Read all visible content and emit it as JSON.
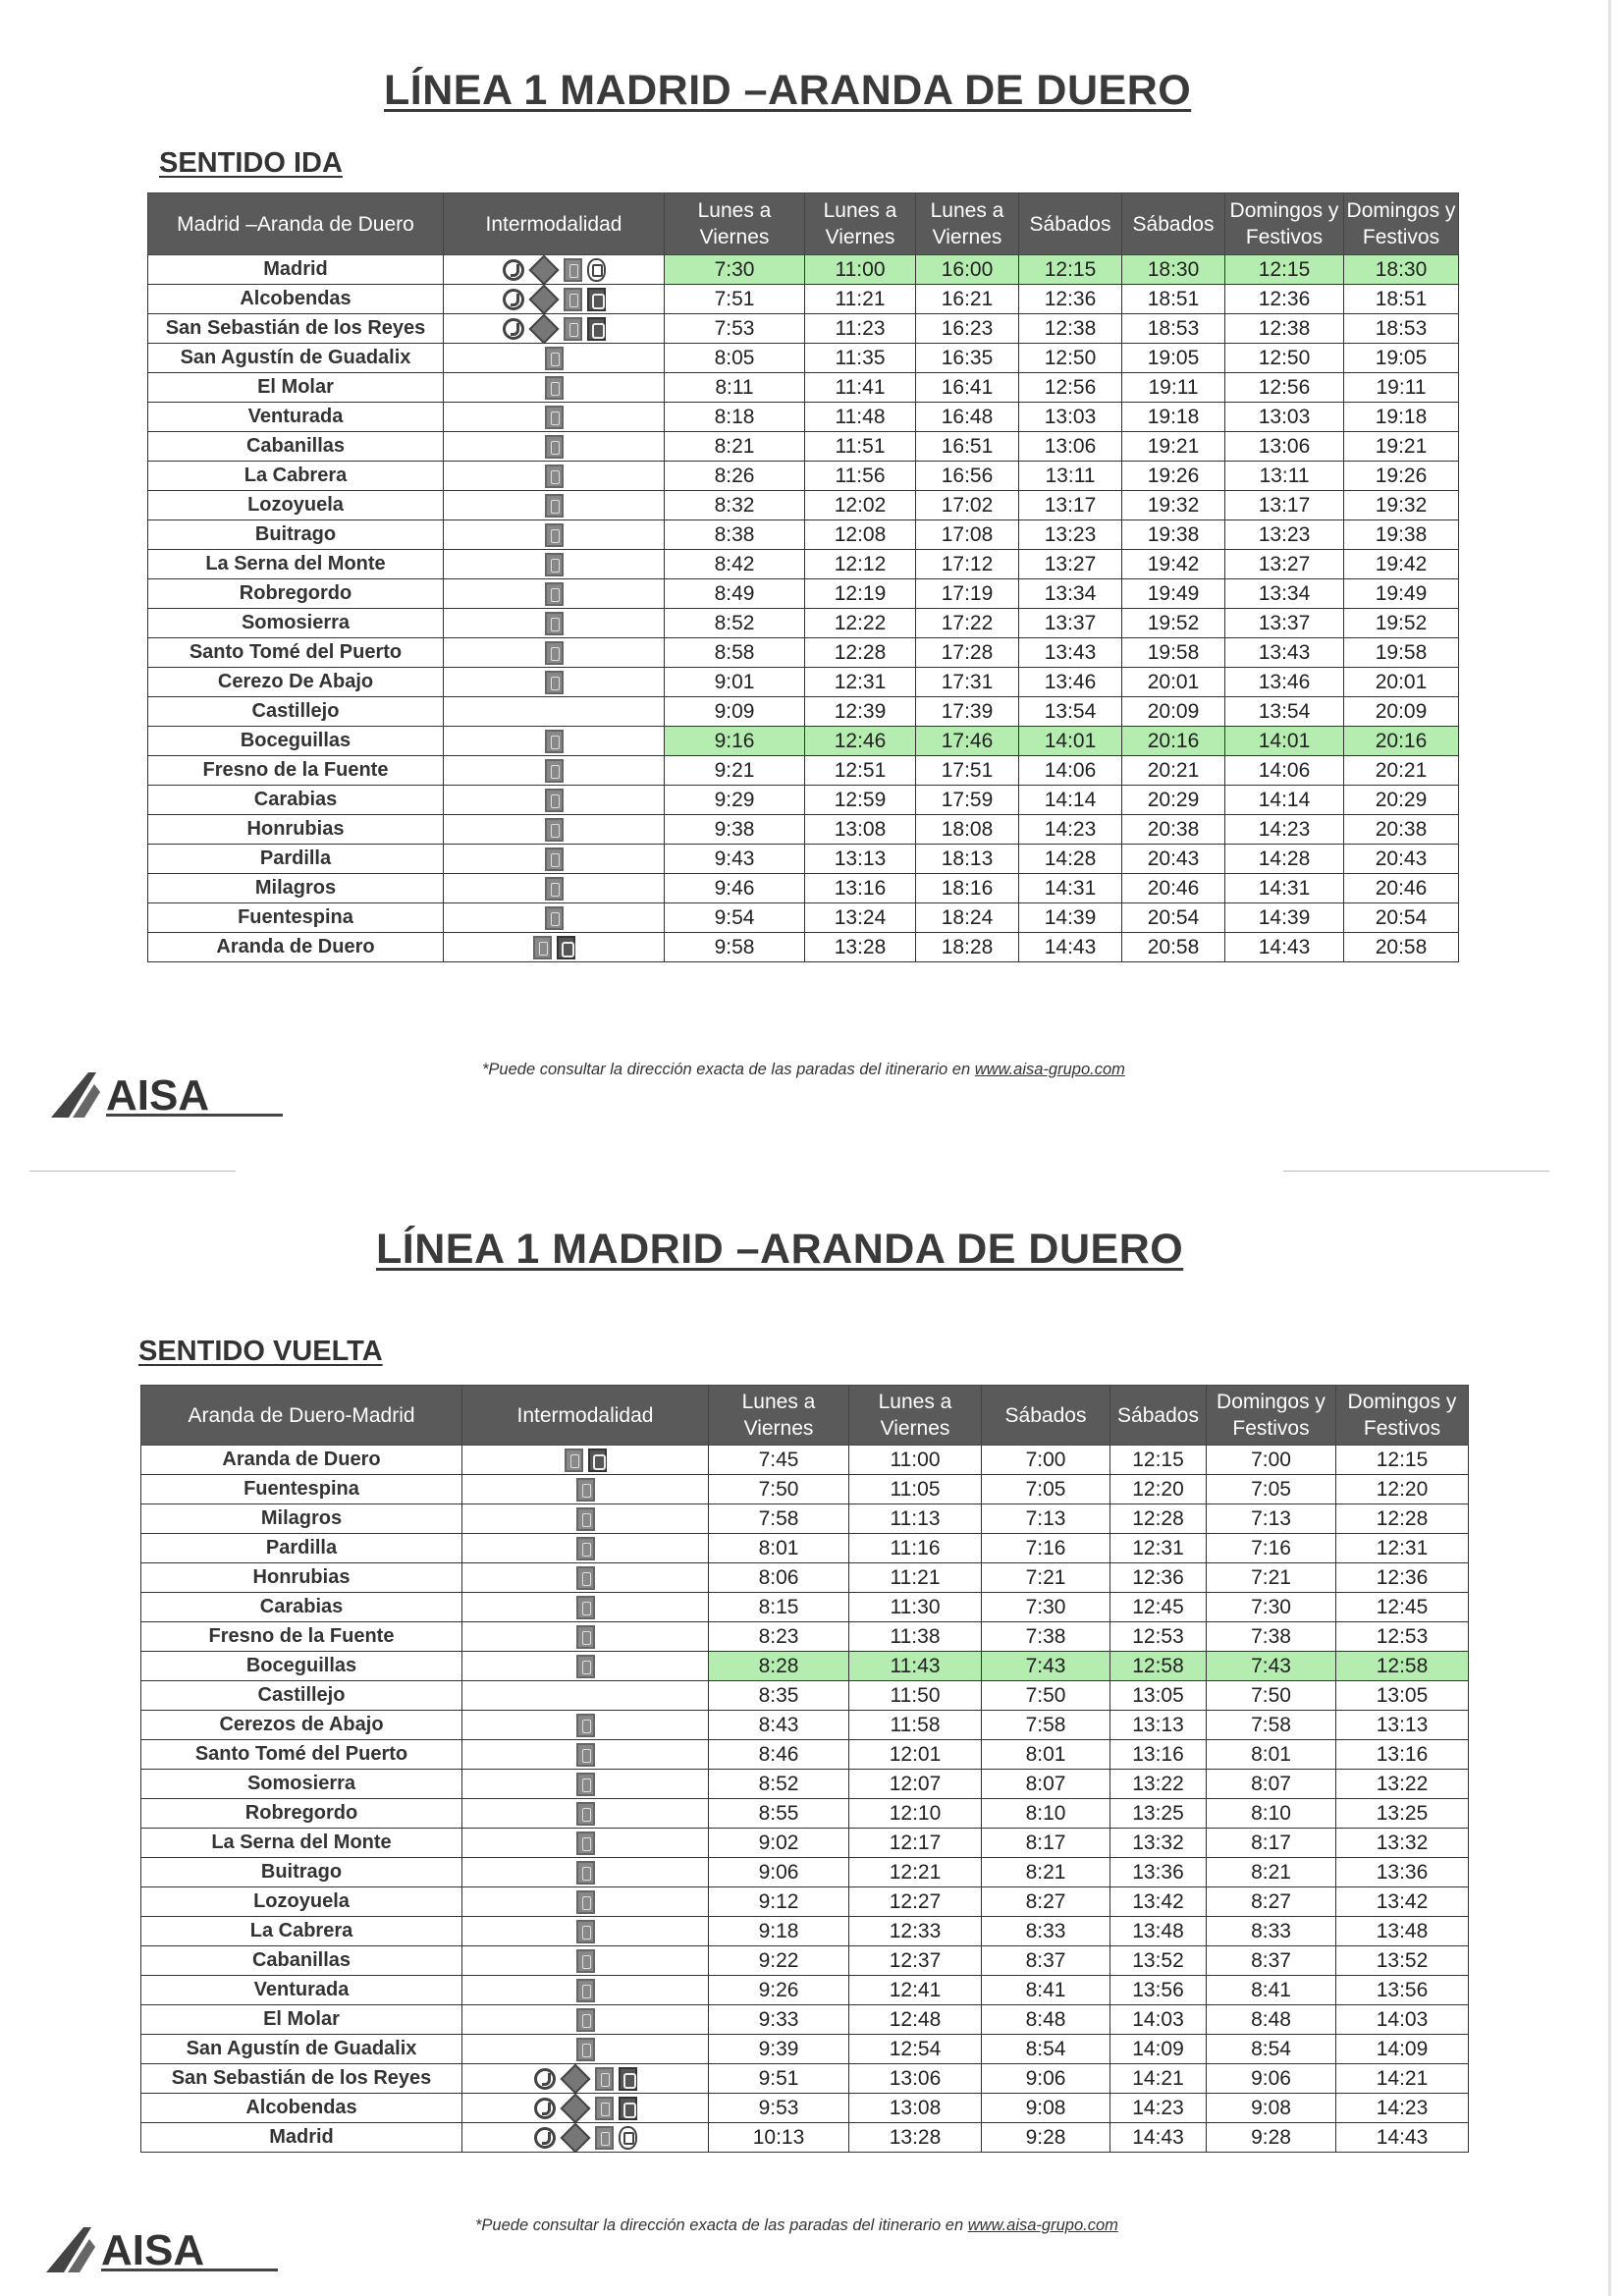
{
  "colors": {
    "header_bg": "#5a5a5a",
    "highlight": "#78dc6e"
  },
  "icon_legend": {
    "cercanias": "cercanias-train-icon",
    "metro": "metro-icon",
    "interurban": "interurban-bus-icon",
    "urban": "urban-bus-icon",
    "urban-round": "urban-bus-round-icon"
  },
  "ida": {
    "title": "LÍNEA 1 MADRID –ARANDA DE DUERO",
    "sentido": "SENTIDO IDA",
    "headers": [
      "Madrid –Aranda de Duero",
      "Intermodalidad",
      "Lunes a Viernes",
      "Lunes a Viernes",
      "Lunes a Viernes",
      "Sábados",
      "Sábados",
      "Domingos y Festivos",
      "Domingos y Festivos"
    ],
    "rows": [
      {
        "stop": "Madrid",
        "icons": [
          "cercanias",
          "metro",
          "interurban",
          "urban-round"
        ],
        "times": [
          "7:30",
          "11:00",
          "16:00",
          "12:15",
          "18:30",
          "12:15",
          "18:30"
        ],
        "highlight": true
      },
      {
        "stop": "Alcobendas",
        "icons": [
          "cercanias",
          "metro",
          "interurban",
          "urban"
        ],
        "times": [
          "7:51",
          "11:21",
          "16:21",
          "12:36",
          "18:51",
          "12:36",
          "18:51"
        ]
      },
      {
        "stop": "San Sebastián de los Reyes",
        "icons": [
          "cercanias",
          "metro",
          "interurban",
          "urban"
        ],
        "times": [
          "7:53",
          "11:23",
          "16:23",
          "12:38",
          "18:53",
          "12:38",
          "18:53"
        ]
      },
      {
        "stop": "San Agustín de Guadalix",
        "icons": [
          "interurban"
        ],
        "times": [
          "8:05",
          "11:35",
          "16:35",
          "12:50",
          "19:05",
          "12:50",
          "19:05"
        ]
      },
      {
        "stop": "El Molar",
        "icons": [
          "interurban"
        ],
        "times": [
          "8:11",
          "11:41",
          "16:41",
          "12:56",
          "19:11",
          "12:56",
          "19:11"
        ]
      },
      {
        "stop": "Venturada",
        "icons": [
          "interurban"
        ],
        "times": [
          "8:18",
          "11:48",
          "16:48",
          "13:03",
          "19:18",
          "13:03",
          "19:18"
        ]
      },
      {
        "stop": "Cabanillas",
        "icons": [
          "interurban"
        ],
        "times": [
          "8:21",
          "11:51",
          "16:51",
          "13:06",
          "19:21",
          "13:06",
          "19:21"
        ]
      },
      {
        "stop": "La Cabrera",
        "icons": [
          "interurban"
        ],
        "times": [
          "8:26",
          "11:56",
          "16:56",
          "13:11",
          "19:26",
          "13:11",
          "19:26"
        ]
      },
      {
        "stop": "Lozoyuela",
        "icons": [
          "interurban"
        ],
        "times": [
          "8:32",
          "12:02",
          "17:02",
          "13:17",
          "19:32",
          "13:17",
          "19:32"
        ]
      },
      {
        "stop": "Buitrago",
        "icons": [
          "interurban"
        ],
        "times": [
          "8:38",
          "12:08",
          "17:08",
          "13:23",
          "19:38",
          "13:23",
          "19:38"
        ]
      },
      {
        "stop": "La Serna del Monte",
        "icons": [
          "interurban"
        ],
        "times": [
          "8:42",
          "12:12",
          "17:12",
          "13:27",
          "19:42",
          "13:27",
          "19:42"
        ]
      },
      {
        "stop": "Robregordo",
        "icons": [
          "interurban"
        ],
        "times": [
          "8:49",
          "12:19",
          "17:19",
          "13:34",
          "19:49",
          "13:34",
          "19:49"
        ]
      },
      {
        "stop": "Somosierra",
        "icons": [
          "interurban"
        ],
        "times": [
          "8:52",
          "12:22",
          "17:22",
          "13:37",
          "19:52",
          "13:37",
          "19:52"
        ]
      },
      {
        "stop": "Santo Tomé del Puerto",
        "icons": [
          "interurban"
        ],
        "times": [
          "8:58",
          "12:28",
          "17:28",
          "13:43",
          "19:58",
          "13:43",
          "19:58"
        ]
      },
      {
        "stop": "Cerezo De Abajo",
        "icons": [
          "interurban"
        ],
        "times": [
          "9:01",
          "12:31",
          "17:31",
          "13:46",
          "20:01",
          "13:46",
          "20:01"
        ]
      },
      {
        "stop": "Castillejo",
        "icons": [],
        "times": [
          "9:09",
          "12:39",
          "17:39",
          "13:54",
          "20:09",
          "13:54",
          "20:09"
        ]
      },
      {
        "stop": "Boceguillas",
        "icons": [
          "interurban"
        ],
        "times": [
          "9:16",
          "12:46",
          "17:46",
          "14:01",
          "20:16",
          "14:01",
          "20:16"
        ],
        "highlight": true
      },
      {
        "stop": "Fresno de la Fuente",
        "icons": [
          "interurban"
        ],
        "times": [
          "9:21",
          "12:51",
          "17:51",
          "14:06",
          "20:21",
          "14:06",
          "20:21"
        ]
      },
      {
        "stop": "Carabias",
        "icons": [
          "interurban"
        ],
        "times": [
          "9:29",
          "12:59",
          "17:59",
          "14:14",
          "20:29",
          "14:14",
          "20:29"
        ]
      },
      {
        "stop": "Honrubias",
        "icons": [
          "interurban"
        ],
        "times": [
          "9:38",
          "13:08",
          "18:08",
          "14:23",
          "20:38",
          "14:23",
          "20:38"
        ]
      },
      {
        "stop": "Pardilla",
        "icons": [
          "interurban"
        ],
        "times": [
          "9:43",
          "13:13",
          "18:13",
          "14:28",
          "20:43",
          "14:28",
          "20:43"
        ]
      },
      {
        "stop": "Milagros",
        "icons": [
          "interurban"
        ],
        "times": [
          "9:46",
          "13:16",
          "18:16",
          "14:31",
          "20:46",
          "14:31",
          "20:46"
        ]
      },
      {
        "stop": "Fuentespina",
        "icons": [
          "interurban"
        ],
        "times": [
          "9:54",
          "13:24",
          "18:24",
          "14:39",
          "20:54",
          "14:39",
          "20:54"
        ]
      },
      {
        "stop": "Aranda de Duero",
        "icons": [
          "interurban",
          "urban"
        ],
        "times": [
          "9:58",
          "13:28",
          "18:28",
          "14:43",
          "20:58",
          "14:43",
          "20:58"
        ]
      }
    ],
    "footnote": "*Puede consultar la dirección exacta de las paradas del itinerario en ",
    "footnote_link": "www.aisa-grupo.com",
    "logo": "AISA"
  },
  "vuelta": {
    "title": "LÍNEA 1 MADRID –ARANDA DE DUERO",
    "sentido": "SENTIDO VUELTA",
    "headers": [
      "Aranda de Duero-Madrid",
      "Intermodalidad",
      "Lunes a Viernes",
      "Lunes a Viernes",
      "Sábados",
      "Sábados",
      "Domingos y Festivos",
      "Domingos y Festivos"
    ],
    "rows": [
      {
        "stop": "Aranda de Duero",
        "icons": [
          "interurban",
          "urban"
        ],
        "times": [
          "7:45",
          "11:00",
          "7:00",
          "12:15",
          "7:00",
          "12:15"
        ]
      },
      {
        "stop": "Fuentespina",
        "icons": [
          "interurban"
        ],
        "times": [
          "7:50",
          "11:05",
          "7:05",
          "12:20",
          "7:05",
          "12:20"
        ]
      },
      {
        "stop": "Milagros",
        "icons": [
          "interurban"
        ],
        "times": [
          "7:58",
          "11:13",
          "7:13",
          "12:28",
          "7:13",
          "12:28"
        ]
      },
      {
        "stop": "Pardilla",
        "icons": [
          "interurban"
        ],
        "times": [
          "8:01",
          "11:16",
          "7:16",
          "12:31",
          "7:16",
          "12:31"
        ]
      },
      {
        "stop": "Honrubias",
        "icons": [
          "interurban"
        ],
        "times": [
          "8:06",
          "11:21",
          "7:21",
          "12:36",
          "7:21",
          "12:36"
        ]
      },
      {
        "stop": "Carabias",
        "icons": [
          "interurban"
        ],
        "times": [
          "8:15",
          "11:30",
          "7:30",
          "12:45",
          "7:30",
          "12:45"
        ]
      },
      {
        "stop": "Fresno de la Fuente",
        "icons": [
          "interurban"
        ],
        "times": [
          "8:23",
          "11:38",
          "7:38",
          "12:53",
          "7:38",
          "12:53"
        ]
      },
      {
        "stop": "Boceguillas",
        "icons": [
          "interurban"
        ],
        "times": [
          "8:28",
          "11:43",
          "7:43",
          "12:58",
          "7:43",
          "12:58"
        ],
        "highlight": true
      },
      {
        "stop": "Castillejo",
        "icons": [],
        "times": [
          "8:35",
          "11:50",
          "7:50",
          "13:05",
          "7:50",
          "13:05"
        ]
      },
      {
        "stop": "Cerezos de Abajo",
        "icons": [
          "interurban"
        ],
        "times": [
          "8:43",
          "11:58",
          "7:58",
          "13:13",
          "7:58",
          "13:13"
        ]
      },
      {
        "stop": "Santo Tomé del Puerto",
        "icons": [
          "interurban"
        ],
        "times": [
          "8:46",
          "12:01",
          "8:01",
          "13:16",
          "8:01",
          "13:16"
        ]
      },
      {
        "stop": "Somosierra",
        "icons": [
          "interurban"
        ],
        "times": [
          "8:52",
          "12:07",
          "8:07",
          "13:22",
          "8:07",
          "13:22"
        ]
      },
      {
        "stop": "Robregordo",
        "icons": [
          "interurban"
        ],
        "times": [
          "8:55",
          "12:10",
          "8:10",
          "13:25",
          "8:10",
          "13:25"
        ]
      },
      {
        "stop": "La Serna del Monte",
        "icons": [
          "interurban"
        ],
        "times": [
          "9:02",
          "12:17",
          "8:17",
          "13:32",
          "8:17",
          "13:32"
        ]
      },
      {
        "stop": "Buitrago",
        "icons": [
          "interurban"
        ],
        "times": [
          "9:06",
          "12:21",
          "8:21",
          "13:36",
          "8:21",
          "13:36"
        ]
      },
      {
        "stop": "Lozoyuela",
        "icons": [
          "interurban"
        ],
        "times": [
          "9:12",
          "12:27",
          "8:27",
          "13:42",
          "8:27",
          "13:42"
        ]
      },
      {
        "stop": "La Cabrera",
        "icons": [
          "interurban"
        ],
        "times": [
          "9:18",
          "12:33",
          "8:33",
          "13:48",
          "8:33",
          "13:48"
        ]
      },
      {
        "stop": "Cabanillas",
        "icons": [
          "interurban"
        ],
        "times": [
          "9:22",
          "12:37",
          "8:37",
          "13:52",
          "8:37",
          "13:52"
        ]
      },
      {
        "stop": "Venturada",
        "icons": [
          "interurban"
        ],
        "times": [
          "9:26",
          "12:41",
          "8:41",
          "13:56",
          "8:41",
          "13:56"
        ]
      },
      {
        "stop": "El Molar",
        "icons": [
          "interurban"
        ],
        "times": [
          "9:33",
          "12:48",
          "8:48",
          "14:03",
          "8:48",
          "14:03"
        ]
      },
      {
        "stop": "San Agustín de Guadalix",
        "icons": [
          "interurban"
        ],
        "times": [
          "9:39",
          "12:54",
          "8:54",
          "14:09",
          "8:54",
          "14:09"
        ]
      },
      {
        "stop": "San Sebastián de los Reyes",
        "icons": [
          "cercanias",
          "metro",
          "interurban",
          "urban"
        ],
        "times": [
          "9:51",
          "13:06",
          "9:06",
          "14:21",
          "9:06",
          "14:21"
        ]
      },
      {
        "stop": "Alcobendas",
        "icons": [
          "cercanias",
          "metro",
          "interurban",
          "urban"
        ],
        "times": [
          "9:53",
          "13:08",
          "9:08",
          "14:23",
          "9:08",
          "14:23"
        ]
      },
      {
        "stop": "Madrid",
        "icons": [
          "cercanias",
          "metro",
          "interurban",
          "urban-round"
        ],
        "times": [
          "10:13",
          "13:28",
          "9:28",
          "14:43",
          "9:28",
          "14:43"
        ]
      }
    ],
    "footnote": "*Puede consultar la dirección exacta de las paradas del itinerario en ",
    "footnote_link": "www.aisa-grupo.com",
    "logo": "AISA"
  }
}
